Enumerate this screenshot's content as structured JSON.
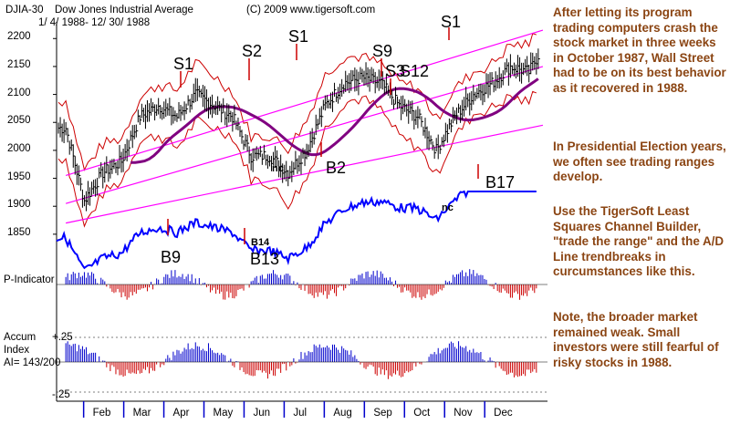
{
  "header": {
    "symbol": "DJIA-30",
    "name": "Dow Jones Industrial Average",
    "copyright": "(C) 2009 www.tigersoft.com",
    "date_range": "1/ 4/ 1988- 12/ 30/ 1988"
  },
  "colors": {
    "annotation_text": "#8b4513",
    "price_bars": "#000000",
    "channel_lines": "#ff00ff",
    "bands": "#cc0000",
    "moving_average": "#800080",
    "ad_line": "#0000ff",
    "positive_bars": "#0000cc",
    "negative_bars": "#cc0000"
  },
  "annotations": [
    "After letting its program trading computers crash the stock market in three weeks in October 1987, Wall Street had to be on its best behavior as it recovered in 1988.",
    "In Presidential Election years, we often see trading ranges develop.",
    "Use the TigerSoft Least Squares Channel Builder, \"trade the range\" and the A/D Line trendbreaks in curcumstances like this.",
    "Note, the broader market remained weak. Small investors were still fearful of risky stocks in 1988."
  ],
  "panel_labels": {
    "p_indicator": "P-Indicator",
    "accum_1": "Accum",
    "accum_2": "Index",
    "accum_3": "AI= 143/200",
    "accum_top": "+.25",
    "accum_bottom": "-.25"
  },
  "signals": {
    "s1_a": "S1",
    "s2": "S2",
    "s1_b": "S1",
    "s9": "S9",
    "s3": "S3",
    "s12": "S12",
    "s1_c": "S1",
    "b9": "B9",
    "b13": "B13",
    "b14": "B14",
    "b2": "B2",
    "b17": "B17",
    "nc_a": "nc",
    "nc_b": "nc"
  },
  "chart_data": {
    "type": "line",
    "title": "Dow Jones Industrial Average",
    "xlabel": "",
    "ylabel": "",
    "ylim": [
      1850,
      2200
    ],
    "y_ticks": [
      2200,
      2150,
      2100,
      2050,
      2000,
      1950,
      1900,
      1850
    ],
    "categories": [
      "Feb",
      "Mar",
      "Apr",
      "May",
      "Jun",
      "Jul",
      "Aug",
      "Sep",
      "Oct",
      "Nov",
      "Dec"
    ],
    "series": [
      {
        "name": "DJIA-30",
        "x": [
          1,
          3,
          5,
          7,
          9,
          11,
          13,
          15,
          17,
          19,
          21,
          23,
          25,
          27,
          29,
          31,
          33,
          35,
          37,
          39,
          41,
          43,
          45,
          47,
          49,
          51,
          52
        ],
        "values": [
          2040,
          1910,
          1960,
          1980,
          2060,
          2080,
          2060,
          2100,
          2080,
          2060,
          1990,
          1990,
          1960,
          2000,
          2080,
          2120,
          2130,
          2120,
          2080,
          2060,
          2000,
          2060,
          2100,
          2120,
          2150,
          2140,
          2170
        ]
      }
    ]
  }
}
